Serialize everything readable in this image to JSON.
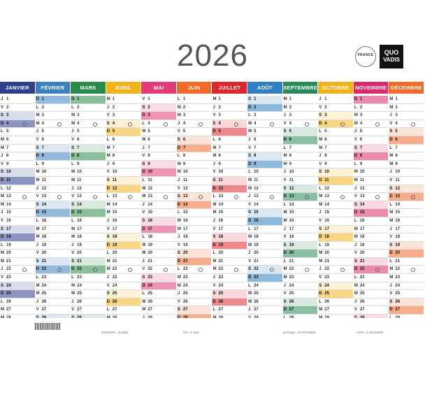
{
  "title": "2026",
  "logos": {
    "france_seal": "FRANCE",
    "brand_line1": "QUO",
    "brand_line2": "VADIS"
  },
  "months": [
    {
      "name": "JANVIER",
      "color": "#2e3f8f",
      "first_weekday": 3,
      "days": 31
    },
    {
      "name": "FÉVRIER",
      "color": "#3a7fc0",
      "first_weekday": 6,
      "days": 28
    },
    {
      "name": "MARS",
      "color": "#2a8a4a",
      "first_weekday": 6,
      "days": 31
    },
    {
      "name": "AVRIL",
      "color": "#f2b41c",
      "first_weekday": 2,
      "days": 30
    },
    {
      "name": "MAI",
      "color": "#e23c76",
      "first_weekday": 4,
      "days": 31
    },
    {
      "name": "JUIN",
      "color": "#f06a2a",
      "first_weekday": 0,
      "days": 30
    },
    {
      "name": "JUILLET",
      "color": "#e0262d",
      "first_weekday": 2,
      "days": 31
    },
    {
      "name": "AOÛT",
      "color": "#2f7fc2",
      "first_weekday": 5,
      "days": 31
    },
    {
      "name": "SEPTEMBRE",
      "color": "#2a8a5a",
      "first_weekday": 1,
      "days": 30
    },
    {
      "name": "OCTOBRE",
      "color": "#f2b41c",
      "first_weekday": 3,
      "days": 31
    },
    {
      "name": "NOVEMBRE",
      "color": "#d92b6a",
      "first_weekday": 6,
      "days": 30
    },
    {
      "name": "DÉCEMBRE",
      "color": "#f06a2a",
      "first_weekday": 1,
      "days": 31
    }
  ],
  "day_letters": [
    "L",
    "M",
    "M",
    "J",
    "V",
    "S",
    "D"
  ],
  "seasons": {
    "spring": "PRINTEMPS : 20 MARS",
    "summer": "ÉTÉ : 21 JUIN",
    "autumn": "AUTOMNE : 23 SEPTEMBRE",
    "winter": "HIVER : 21 DÉCEMBRE"
  }
}
